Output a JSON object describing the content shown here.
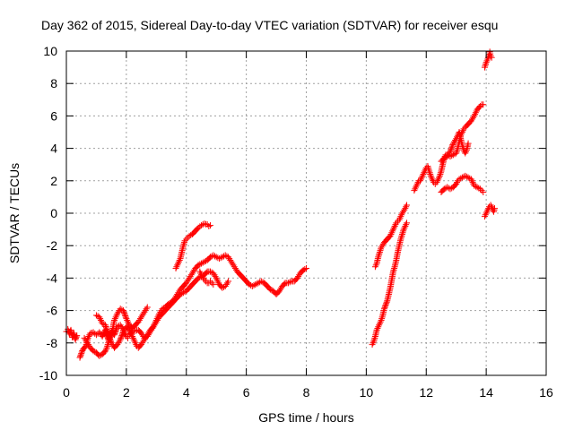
{
  "chart_data": {
    "type": "scatter",
    "title": "Day 362 of 2015, Sidereal Day-to-day VTEC variation (SDTVAR) for receiver esqu",
    "xlabel": "GPS time / hours",
    "ylabel": "SDTVAR / TECUs",
    "xlim": [
      0,
      16
    ],
    "ylim": [
      -10,
      10
    ],
    "x_ticks": [
      "0",
      "2",
      "4",
      "6",
      "8",
      "10",
      "12",
      "14",
      "16"
    ],
    "y_ticks": [
      "-10",
      "-8",
      "-6",
      "-4",
      "-2",
      "0",
      "2",
      "4",
      "6",
      "8",
      "10"
    ],
    "grid": true,
    "marker": "+",
    "color": "#ff0000",
    "series": [
      {
        "points": [
          [
            0.0,
            -7.3
          ],
          [
            0.05,
            -7.15
          ],
          [
            0.1,
            -7.45
          ],
          [
            0.15,
            -7.2
          ],
          [
            0.2,
            -7.65
          ],
          [
            0.25,
            -7.4
          ],
          [
            0.3,
            -7.8
          ],
          [
            0.35,
            -7.55
          ]
        ]
      },
      {
        "points": [
          [
            0.45,
            -8.9
          ],
          [
            0.55,
            -8.4
          ],
          [
            0.65,
            -8.2
          ],
          [
            0.72,
            -7.7
          ],
          [
            0.8,
            -7.4
          ],
          [
            0.9,
            -7.35
          ],
          [
            1.0,
            -7.5
          ],
          [
            1.1,
            -7.35
          ],
          [
            1.2,
            -7.6
          ],
          [
            1.3,
            -7.2
          ],
          [
            1.4,
            -7.8
          ],
          [
            1.5,
            -7.3
          ],
          [
            1.6,
            -7.5
          ],
          [
            1.7,
            -7.0
          ],
          [
            1.8,
            -6.9
          ],
          [
            1.9,
            -7.2
          ],
          [
            2.0,
            -7.6
          ],
          [
            2.05,
            -7.7
          ]
        ]
      },
      {
        "points": [
          [
            0.6,
            -7.7
          ],
          [
            0.7,
            -8.0
          ],
          [
            0.8,
            -8.3
          ],
          [
            0.9,
            -8.5
          ],
          [
            1.0,
            -8.6
          ],
          [
            1.1,
            -8.8
          ],
          [
            1.2,
            -8.7
          ],
          [
            1.3,
            -8.5
          ],
          [
            1.35,
            -8.3
          ],
          [
            1.4,
            -8.0
          ],
          [
            1.5,
            -7.5
          ],
          [
            1.55,
            -7.1
          ],
          [
            1.6,
            -6.6
          ],
          [
            1.7,
            -6.2
          ],
          [
            1.8,
            -5.9
          ],
          [
            1.9,
            -6.0
          ],
          [
            2.0,
            -6.5
          ],
          [
            2.1,
            -6.9
          ],
          [
            2.2,
            -7.1
          ],
          [
            2.3,
            -6.9
          ],
          [
            2.4,
            -6.7
          ],
          [
            2.5,
            -6.4
          ],
          [
            2.6,
            -6.1
          ],
          [
            2.7,
            -5.8
          ]
        ]
      },
      {
        "points": [
          [
            1.0,
            -6.3
          ],
          [
            1.1,
            -6.4
          ],
          [
            1.2,
            -6.8
          ],
          [
            1.3,
            -6.9
          ],
          [
            1.4,
            -7.5
          ],
          [
            1.5,
            -8.0
          ],
          [
            1.6,
            -8.3
          ],
          [
            1.7,
            -8.1
          ],
          [
            1.8,
            -7.8
          ],
          [
            1.9,
            -7.3
          ],
          [
            2.0,
            -7.0
          ],
          [
            2.1,
            -7.2
          ],
          [
            2.2,
            -7.6
          ],
          [
            2.3,
            -8.0
          ],
          [
            2.35,
            -8.2
          ],
          [
            2.4,
            -8.3
          ],
          [
            2.5,
            -8.1
          ],
          [
            2.6,
            -7.8
          ],
          [
            2.7,
            -7.5
          ],
          [
            2.8,
            -7.2
          ],
          [
            2.9,
            -7.0
          ],
          [
            3.0,
            -6.7
          ],
          [
            3.1,
            -6.4
          ],
          [
            3.2,
            -6.2
          ],
          [
            3.3,
            -6.0
          ],
          [
            3.4,
            -5.8
          ],
          [
            3.5,
            -5.6
          ],
          [
            3.6,
            -5.4
          ],
          [
            3.7,
            -5.2
          ],
          [
            3.8,
            -5.0
          ],
          [
            3.9,
            -4.9
          ],
          [
            4.0,
            -4.8
          ],
          [
            4.1,
            -4.6
          ],
          [
            4.2,
            -4.4
          ],
          [
            4.3,
            -4.2
          ],
          [
            4.4,
            -4.0
          ],
          [
            4.5,
            -3.9
          ],
          [
            4.6,
            -3.8
          ],
          [
            4.7,
            -3.6
          ],
          [
            4.8,
            -3.6
          ],
          [
            4.9,
            -3.7
          ],
          [
            5.0,
            -4.0
          ],
          [
            5.1,
            -4.4
          ],
          [
            5.2,
            -4.6
          ],
          [
            5.3,
            -4.5
          ],
          [
            5.4,
            -4.2
          ]
        ]
      },
      {
        "points": [
          [
            2.1,
            -7.5
          ],
          [
            2.2,
            -7.3
          ],
          [
            2.4,
            -7.2
          ],
          [
            2.5,
            -7.4
          ],
          [
            2.6,
            -7.7
          ],
          [
            2.7,
            -7.6
          ],
          [
            2.8,
            -7.3
          ],
          [
            2.9,
            -7.0
          ],
          [
            3.0,
            -6.6
          ],
          [
            3.1,
            -6.2
          ],
          [
            3.2,
            -5.9
          ],
          [
            3.3,
            -5.8
          ],
          [
            3.4,
            -5.6
          ],
          [
            3.5,
            -5.5
          ],
          [
            3.6,
            -5.3
          ],
          [
            3.7,
            -5.0
          ],
          [
            3.8,
            -4.7
          ],
          [
            3.9,
            -4.5
          ],
          [
            4.0,
            -4.3
          ],
          [
            4.1,
            -4.0
          ],
          [
            4.2,
            -3.7
          ],
          [
            4.3,
            -3.4
          ],
          [
            4.4,
            -3.2
          ],
          [
            4.5,
            -3.1
          ],
          [
            4.6,
            -3.0
          ],
          [
            4.7,
            -2.9
          ],
          [
            4.8,
            -2.7
          ],
          [
            4.9,
            -2.6
          ],
          [
            5.0,
            -2.7
          ],
          [
            5.1,
            -2.8
          ],
          [
            5.2,
            -2.7
          ],
          [
            5.3,
            -2.6
          ],
          [
            5.4,
            -2.7
          ],
          [
            5.5,
            -3.0
          ],
          [
            5.6,
            -3.3
          ],
          [
            5.7,
            -3.6
          ],
          [
            5.8,
            -3.8
          ],
          [
            5.9,
            -4.0
          ],
          [
            6.0,
            -4.2
          ],
          [
            6.1,
            -4.4
          ],
          [
            6.2,
            -4.5
          ],
          [
            6.3,
            -4.4
          ],
          [
            6.4,
            -4.3
          ],
          [
            6.5,
            -4.2
          ],
          [
            6.6,
            -4.3
          ],
          [
            6.7,
            -4.5
          ],
          [
            6.8,
            -4.7
          ],
          [
            6.9,
            -4.8
          ],
          [
            7.0,
            -5.0
          ],
          [
            7.1,
            -4.8
          ],
          [
            7.2,
            -4.5
          ],
          [
            7.3,
            -4.3
          ],
          [
            7.4,
            -4.3
          ],
          [
            7.5,
            -4.2
          ],
          [
            7.6,
            -4.2
          ],
          [
            7.7,
            -4.0
          ],
          [
            7.8,
            -3.7
          ],
          [
            7.9,
            -3.5
          ],
          [
            8.0,
            -3.4
          ]
        ]
      },
      {
        "points": [
          [
            3.65,
            -3.4
          ],
          [
            3.7,
            -3.2
          ],
          [
            3.75,
            -3.0
          ],
          [
            3.8,
            -2.8
          ],
          [
            3.85,
            -2.4
          ],
          [
            3.9,
            -2.0
          ],
          [
            3.95,
            -1.7
          ],
          [
            4.0,
            -1.6
          ],
          [
            4.05,
            -1.5
          ],
          [
            4.1,
            -1.4
          ],
          [
            4.2,
            -1.3
          ],
          [
            4.3,
            -1.1
          ],
          [
            4.4,
            -0.9
          ],
          [
            4.5,
            -0.75
          ],
          [
            4.6,
            -0.65
          ],
          [
            4.7,
            -0.7
          ],
          [
            4.75,
            -0.8
          ],
          [
            4.8,
            -0.75
          ]
        ]
      },
      {
        "points": [
          [
            4.45,
            -3.6
          ],
          [
            4.5,
            -3.8
          ],
          [
            4.55,
            -3.9
          ],
          [
            4.6,
            -4.1
          ],
          [
            4.65,
            -4.2
          ],
          [
            4.7,
            -4.3
          ],
          [
            4.75,
            -4.3
          ],
          [
            4.8,
            -4.2
          ],
          [
            4.85,
            -4.3
          ],
          [
            4.9,
            -4.4
          ]
        ]
      },
      {
        "points": [
          [
            10.2,
            -8.1
          ],
          [
            10.25,
            -7.9
          ],
          [
            10.3,
            -7.6
          ],
          [
            10.35,
            -7.2
          ],
          [
            10.4,
            -7.0
          ],
          [
            10.5,
            -6.6
          ],
          [
            10.55,
            -6.3
          ],
          [
            10.6,
            -5.9
          ],
          [
            10.7,
            -5.4
          ],
          [
            10.75,
            -5.0
          ],
          [
            10.8,
            -4.6
          ],
          [
            10.85,
            -4.1
          ],
          [
            10.9,
            -3.6
          ],
          [
            10.95,
            -3.3
          ],
          [
            11.0,
            -2.9
          ],
          [
            11.05,
            -2.4
          ],
          [
            11.1,
            -2.0
          ],
          [
            11.15,
            -1.6
          ],
          [
            11.2,
            -1.3
          ],
          [
            11.25,
            -1.0
          ],
          [
            11.3,
            -0.8
          ],
          [
            11.35,
            -0.6
          ]
        ]
      },
      {
        "points": [
          [
            10.3,
            -3.3
          ],
          [
            10.35,
            -3.1
          ],
          [
            10.4,
            -2.7
          ],
          [
            10.45,
            -2.4
          ],
          [
            10.5,
            -2.1
          ],
          [
            10.6,
            -1.8
          ],
          [
            10.7,
            -1.6
          ],
          [
            10.8,
            -1.4
          ],
          [
            10.85,
            -1.2
          ],
          [
            10.9,
            -1.0
          ],
          [
            10.95,
            -0.8
          ],
          [
            11.0,
            -0.6
          ],
          [
            11.05,
            -0.5
          ],
          [
            11.1,
            -0.4
          ],
          [
            11.15,
            -0.2
          ],
          [
            11.2,
            0.0
          ],
          [
            11.3,
            0.3
          ],
          [
            11.35,
            0.5
          ]
        ]
      },
      {
        "points": [
          [
            11.6,
            1.4
          ],
          [
            11.65,
            1.6
          ],
          [
            11.7,
            1.8
          ],
          [
            11.75,
            2.0
          ],
          [
            11.8,
            2.0
          ],
          [
            11.85,
            2.2
          ],
          [
            11.9,
            2.4
          ],
          [
            11.95,
            2.6
          ],
          [
            12.0,
            2.8
          ],
          [
            12.05,
            2.9
          ],
          [
            12.1,
            2.6
          ],
          [
            12.15,
            2.3
          ],
          [
            12.2,
            2.1
          ],
          [
            12.25,
            1.9
          ],
          [
            12.3,
            1.8
          ],
          [
            12.35,
            1.9
          ],
          [
            12.4,
            2.1
          ],
          [
            12.45,
            2.3
          ],
          [
            12.5,
            2.6
          ],
          [
            12.55,
            3.0
          ],
          [
            12.6,
            3.4
          ],
          [
            12.65,
            3.6
          ],
          [
            12.7,
            3.6
          ],
          [
            12.8,
            3.5
          ],
          [
            12.9,
            3.6
          ],
          [
            13.0,
            3.7
          ],
          [
            13.05,
            4.0
          ],
          [
            13.1,
            4.4
          ],
          [
            13.15,
            4.8
          ],
          [
            13.2,
            5.0
          ],
          [
            13.25,
            5.2
          ],
          [
            13.3,
            5.3
          ],
          [
            13.4,
            5.5
          ],
          [
            13.5,
            5.7
          ],
          [
            13.6,
            6.0
          ],
          [
            13.7,
            6.4
          ],
          [
            13.8,
            6.6
          ],
          [
            13.85,
            6.7
          ],
          [
            13.9,
            6.7
          ]
        ]
      },
      {
        "points": [
          [
            12.5,
            1.3
          ],
          [
            12.6,
            1.5
          ],
          [
            12.7,
            1.6
          ],
          [
            12.8,
            1.5
          ],
          [
            12.9,
            1.6
          ],
          [
            13.0,
            1.8
          ],
          [
            13.05,
            2.0
          ],
          [
            13.1,
            2.1
          ],
          [
            13.2,
            2.2
          ],
          [
            13.3,
            2.3
          ],
          [
            13.4,
            2.2
          ],
          [
            13.5,
            2.1
          ],
          [
            13.55,
            1.9
          ],
          [
            13.6,
            1.7
          ],
          [
            13.7,
            1.6
          ],
          [
            13.8,
            1.5
          ],
          [
            13.85,
            1.4
          ],
          [
            13.9,
            1.3
          ]
        ]
      },
      {
        "points": [
          [
            12.5,
            3.2
          ],
          [
            12.6,
            3.4
          ],
          [
            12.7,
            3.5
          ],
          [
            12.8,
            3.8
          ],
          [
            12.9,
            4.3
          ],
          [
            13.0,
            4.6
          ],
          [
            13.05,
            4.8
          ],
          [
            13.1,
            5.0
          ],
          [
            13.15,
            4.6
          ],
          [
            13.2,
            4.2
          ],
          [
            13.25,
            3.9
          ],
          [
            13.3,
            3.7
          ],
          [
            13.35,
            3.9
          ],
          [
            13.4,
            4.3
          ]
        ]
      },
      {
        "points": [
          [
            13.95,
            9.0
          ],
          [
            14.0,
            9.3
          ],
          [
            14.05,
            9.5
          ],
          [
            14.1,
            9.8
          ],
          [
            14.12,
            9.95
          ],
          [
            14.15,
            9.7
          ],
          [
            14.18,
            9.6
          ]
        ]
      },
      {
        "points": [
          [
            13.95,
            -0.2
          ],
          [
            14.0,
            0.0
          ],
          [
            14.05,
            0.2
          ],
          [
            14.1,
            0.4
          ],
          [
            14.15,
            0.5
          ],
          [
            14.2,
            0.3
          ],
          [
            14.25,
            0.1
          ],
          [
            14.28,
            0.3
          ]
        ]
      }
    ]
  }
}
